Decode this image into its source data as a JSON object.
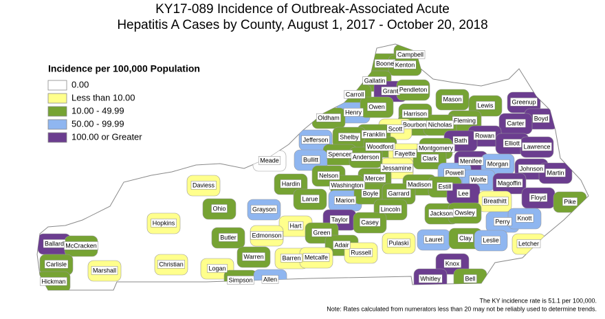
{
  "title_lines": [
    "KY17-089 Incidence of Outbreak-Associated Acute",
    "Hepatitis A Cases by County, August 1, 2017 - October 20, 2018"
  ],
  "legend": {
    "title": "Incidence per 100,000 Population",
    "items": [
      {
        "label": "0.00",
        "color": "#ffffff"
      },
      {
        "label": "Less than 10.00",
        "color": "#ffff8c"
      },
      {
        "label": "10.00 - 49.99",
        "color": "#76a333"
      },
      {
        "label": "50.00 - 99.99",
        "color": "#8fb6f0"
      },
      {
        "label": "100.00 or Greater",
        "color": "#6b3d8f"
      }
    ]
  },
  "counties": [
    {
      "name": "Campbell",
      "color": "#76a333"
    },
    {
      "name": "Boone",
      "color": "#76a333"
    },
    {
      "name": "Kenton",
      "color": "#76a333"
    },
    {
      "name": "Gallatin",
      "color": "#76a333"
    },
    {
      "name": "Grant",
      "color": "#6b3d8f"
    },
    {
      "name": "Pendleton",
      "color": "#76a333"
    },
    {
      "name": "Carroll",
      "color": "#76a333"
    },
    {
      "name": "Mason",
      "color": "#76a333"
    },
    {
      "name": "Lewis",
      "color": "#76a333"
    },
    {
      "name": "Greenup",
      "color": "#6b3d8f"
    },
    {
      "name": "Henry",
      "color": "#8fb6f0"
    },
    {
      "name": "Owen",
      "color": "#76a333"
    },
    {
      "name": "Harrison",
      "color": "#76a333"
    },
    {
      "name": "Boyd",
      "color": "#6b3d8f"
    },
    {
      "name": "Carter",
      "color": "#6b3d8f"
    },
    {
      "name": "Fleming",
      "color": "#76a333"
    },
    {
      "name": "Oldham",
      "color": "#76a333"
    },
    {
      "name": "Bourbon",
      "color": "#76a333"
    },
    {
      "name": "Nicholas",
      "color": "#76a333"
    },
    {
      "name": "Scott",
      "color": "#ffff8c"
    },
    {
      "name": "Rowan",
      "color": "#6b3d8f"
    },
    {
      "name": "Franklin",
      "color": "#76a333"
    },
    {
      "name": "Shelby",
      "color": "#76a333"
    },
    {
      "name": "Jefferson",
      "color": "#8fb6f0"
    },
    {
      "name": "Bath",
      "color": "#6b3d8f"
    },
    {
      "name": "Elliott",
      "color": "#6b3d8f"
    },
    {
      "name": "Lawrence",
      "color": "#6b3d8f"
    },
    {
      "name": "Woodford",
      "color": "#76a333"
    },
    {
      "name": "Montgomery",
      "color": "#76a333"
    },
    {
      "name": "Fayette",
      "color": "#ffff8c"
    },
    {
      "name": "Spencer",
      "color": "#76a333"
    },
    {
      "name": "Clark",
      "color": "#76a333"
    },
    {
      "name": "Menifee",
      "color": "#6b3d8f"
    },
    {
      "name": "Morgan",
      "color": "#8fb6f0"
    },
    {
      "name": "Bullitt",
      "color": "#8fb6f0"
    },
    {
      "name": "Meade",
      "color": "#ffffff"
    },
    {
      "name": "Jessamine",
      "color": "#ffff8c"
    },
    {
      "name": "Anderson",
      "color": "#76a333"
    },
    {
      "name": "Johnson",
      "color": "#6b3d8f"
    },
    {
      "name": "Powell",
      "color": "#8fb6f0"
    },
    {
      "name": "Martin",
      "color": "#6b3d8f"
    },
    {
      "name": "Nelson",
      "color": "#76a333"
    },
    {
      "name": "Mercer",
      "color": "#76a333"
    },
    {
      "name": "Wolfe",
      "color": "#8fb6f0"
    },
    {
      "name": "Daviess",
      "color": "#ffff8c"
    },
    {
      "name": "Hardin",
      "color": "#76a333"
    },
    {
      "name": "Washington",
      "color": "#76a333"
    },
    {
      "name": "Madison",
      "color": "#76a333"
    },
    {
      "name": "Estill",
      "color": "#76a333"
    },
    {
      "name": "Magoffin",
      "color": "#6b3d8f"
    },
    {
      "name": "Lee",
      "color": "#6b3d8f"
    },
    {
      "name": "Breathitt",
      "color": "#ffff8c"
    },
    {
      "name": "Floyd",
      "color": "#6b3d8f"
    },
    {
      "name": "Larue",
      "color": "#76a333"
    },
    {
      "name": "Marion",
      "color": "#8fb6f0"
    },
    {
      "name": "Boyle",
      "color": "#76a333"
    },
    {
      "name": "Garrard",
      "color": "#76a333"
    },
    {
      "name": "Pike",
      "color": "#76a333"
    },
    {
      "name": "Ohio",
      "color": "#76a333"
    },
    {
      "name": "Grayson",
      "color": "#8fb6f0"
    },
    {
      "name": "Lincoln",
      "color": "#76a333"
    },
    {
      "name": "Jackson",
      "color": "#76a333"
    },
    {
      "name": "Owsley",
      "color": "#76a333"
    },
    {
      "name": "Hopkins",
      "color": "#ffff8c"
    },
    {
      "name": "Hart",
      "color": "#ffff8c"
    },
    {
      "name": "Taylor",
      "color": "#6b3d8f"
    },
    {
      "name": "Casey",
      "color": "#76a333"
    },
    {
      "name": "Perry",
      "color": "#8fb6f0"
    },
    {
      "name": "Knott",
      "color": "#8fb6f0"
    },
    {
      "name": "Green",
      "color": "#76a333"
    },
    {
      "name": "Butler",
      "color": "#76a333"
    },
    {
      "name": "Edmonson",
      "color": "#ffff8c"
    },
    {
      "name": "Laurel",
      "color": "#8fb6f0"
    },
    {
      "name": "Clay",
      "color": "#76a333"
    },
    {
      "name": "Leslie",
      "color": "#8fb6f0"
    },
    {
      "name": "Letcher",
      "color": "#ffff8c"
    },
    {
      "name": "Ballard",
      "color": "#6b3d8f"
    },
    {
      "name": "McCracken",
      "color": "#76a333"
    },
    {
      "name": "Adair",
      "color": "#76a333"
    },
    {
      "name": "Pulaski",
      "color": "#ffff8c"
    },
    {
      "name": "Carlisle",
      "color": "#76a333"
    },
    {
      "name": "Warren",
      "color": "#76a333"
    },
    {
      "name": "Barren",
      "color": "#ffff8c"
    },
    {
      "name": "Metcalfe",
      "color": "#ffff8c"
    },
    {
      "name": "Russell",
      "color": "#ffff8c"
    },
    {
      "name": "Christian",
      "color": "#ffff8c"
    },
    {
      "name": "Logan",
      "color": "#ffff8c"
    },
    {
      "name": "Marshall",
      "color": "#ffff8c"
    },
    {
      "name": "Knox",
      "color": "#6b3d8f"
    },
    {
      "name": "Hickman",
      "color": "#76a333"
    },
    {
      "name": "Simpson",
      "color": "#76a333"
    },
    {
      "name": "Allen",
      "color": "#8fb6f0"
    },
    {
      "name": "Whitley",
      "color": "#6b3d8f"
    },
    {
      "name": "Bell",
      "color": "#76a333"
    }
  ],
  "footnotes": [
    "The KY incidence rate is 51.1 per 100,000.",
    "Note: Rates calculated from numerators less than 20 may not be reliably used to determine trends."
  ]
}
